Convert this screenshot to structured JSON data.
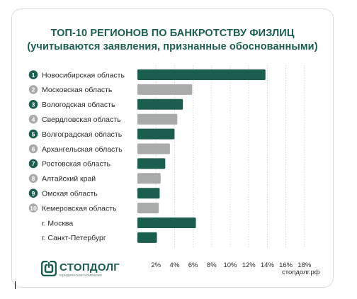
{
  "header": {
    "title_line1": "ТОП-10 РЕГИОНОВ ПО БАНКРОТСТВУ ФИЗЛИЦ",
    "title_line2": "(учитываются заявления, признанные обоснованными)"
  },
  "chart_data": {
    "type": "bar",
    "orientation": "horizontal",
    "categories": [
      "Новосибирская область",
      "Московская область",
      "Вологодская область",
      "Свердловская область",
      "Волгоградская область",
      "Архангельская область",
      "Ростовская область",
      "Алтайский край",
      "Омская область",
      "Кемеровская область",
      "г. Москва",
      "г. Санкт-Петербург"
    ],
    "ranks": [
      "1",
      "2",
      "3",
      "4",
      "5",
      "6",
      "7",
      "8",
      "9",
      "10",
      "",
      ""
    ],
    "values": [
      13.8,
      5.9,
      4.9,
      4.3,
      4.0,
      3.5,
      3.0,
      2.5,
      2.4,
      2.3,
      6.3,
      2.1
    ],
    "xlim": [
      0,
      18
    ],
    "xticks": [
      2,
      4,
      6,
      8,
      10,
      12,
      14,
      16,
      18
    ],
    "xtick_labels": [
      "2%",
      "4%",
      "6%",
      "8%",
      "10%",
      "12%",
      "14%",
      "16%",
      "18%"
    ],
    "grid": true,
    "colors": {
      "odd_rank": "#1b5e4f",
      "even_rank": "#a9aaaa",
      "city": "#1b5e4f",
      "grid": "#cfcfcf",
      "label": "#2b2b2b",
      "title": "#1b5e4f"
    }
  },
  "footer": {
    "brand": "СТОПДОЛГ",
    "brand_sub": "юридическая компания",
    "site": "стопдолг.рф",
    "logo_icon": "stopdolg-logo-icon"
  }
}
